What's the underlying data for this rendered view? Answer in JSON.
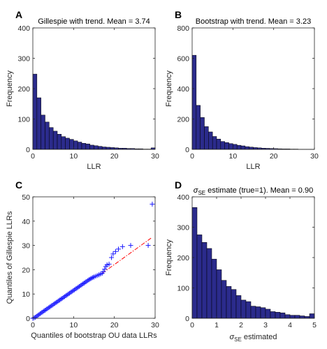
{
  "chart_data": [
    {
      "panel_label": "A",
      "type": "bar",
      "title": "Gillespie with trend. Mean = 3.74",
      "xlabel": "LLR",
      "ylabel": "Frequency",
      "xlim": [
        0,
        30
      ],
      "ylim": [
        0,
        400
      ],
      "xticks": [
        "0",
        "10",
        "20",
        "30"
      ],
      "yticks": [
        "0",
        "100",
        "200",
        "300",
        "400"
      ],
      "bin_width": 1,
      "values": [
        248,
        170,
        113,
        90,
        72,
        60,
        50,
        42,
        37,
        33,
        28,
        24,
        20,
        18,
        14,
        12,
        10,
        8,
        7,
        6,
        5,
        4,
        4,
        3,
        3,
        2,
        2,
        1,
        1,
        5
      ],
      "bar_color": "#2b2b8c"
    },
    {
      "panel_label": "B",
      "type": "bar",
      "title": "Bootstrap with trend. Mean = 3.23",
      "xlabel": "LLR",
      "ylabel": "Frequency",
      "xlim": [
        0,
        30
      ],
      "ylim": [
        0,
        800
      ],
      "xticks": [
        "0",
        "10",
        "20",
        "30"
      ],
      "yticks": [
        "0",
        "200",
        "400",
        "600",
        "800"
      ],
      "bin_width": 1,
      "values": [
        620,
        290,
        210,
        150,
        115,
        85,
        68,
        52,
        45,
        38,
        33,
        27,
        23,
        18,
        15,
        12,
        10,
        8,
        7,
        6,
        5,
        4,
        3,
        3,
        2,
        2,
        1,
        1,
        1,
        1
      ],
      "bar_color": "#2b2b8c"
    },
    {
      "panel_label": "C",
      "type": "scatter",
      "title": "",
      "xlabel": "Quantiles of bootstrap OU data LLRs",
      "ylabel": "Quantiles of Gillespie LLRs",
      "xlim": [
        0,
        30
      ],
      "ylim": [
        0,
        50
      ],
      "xticks": [
        "0",
        "10",
        "20",
        "30"
      ],
      "yticks": [
        "0",
        "10",
        "20",
        "30",
        "40",
        "50"
      ],
      "marker": "+",
      "marker_color": "#1a1aff",
      "reference_line": {
        "style": "dash-dot",
        "color": "#ff0000",
        "x": [
          17,
          29
        ],
        "y": [
          18.5,
          33
        ]
      },
      "points": [
        [
          0,
          0
        ],
        [
          0.3,
          0.2
        ],
        [
          0.6,
          0.4
        ],
        [
          0.9,
          0.8
        ],
        [
          1.2,
          1.2
        ],
        [
          1.5,
          1.5
        ],
        [
          1.8,
          1.9
        ],
        [
          2.1,
          2.3
        ],
        [
          2.4,
          2.6
        ],
        [
          2.7,
          3.0
        ],
        [
          3.0,
          3.3
        ],
        [
          3.3,
          3.7
        ],
        [
          3.6,
          4.0
        ],
        [
          3.9,
          4.4
        ],
        [
          4.2,
          4.7
        ],
        [
          4.5,
          5.1
        ],
        [
          4.8,
          5.4
        ],
        [
          5.1,
          5.8
        ],
        [
          5.4,
          6.1
        ],
        [
          5.7,
          6.5
        ],
        [
          6.0,
          6.8
        ],
        [
          6.3,
          7.2
        ],
        [
          6.6,
          7.5
        ],
        [
          6.9,
          7.9
        ],
        [
          7.2,
          8.2
        ],
        [
          7.5,
          8.6
        ],
        [
          7.8,
          8.9
        ],
        [
          8.1,
          9.3
        ],
        [
          8.4,
          9.6
        ],
        [
          8.7,
          10.0
        ],
        [
          9.0,
          10.3
        ],
        [
          9.3,
          10.7
        ],
        [
          9.6,
          11.0
        ],
        [
          9.9,
          11.4
        ],
        [
          10.2,
          11.7
        ],
        [
          10.5,
          12.1
        ],
        [
          10.8,
          12.4
        ],
        [
          11.1,
          12.8
        ],
        [
          11.4,
          13.1
        ],
        [
          11.7,
          13.5
        ],
        [
          12.0,
          13.8
        ],
        [
          12.3,
          14.2
        ],
        [
          12.6,
          14.5
        ],
        [
          12.9,
          14.9
        ],
        [
          13.2,
          15.2
        ],
        [
          13.5,
          15.6
        ],
        [
          13.8,
          15.9
        ],
        [
          14.1,
          16.2
        ],
        [
          14.4,
          16.5
        ],
        [
          14.7,
          16.8
        ],
        [
          15.0,
          17.0
        ],
        [
          15.4,
          17.3
        ],
        [
          15.8,
          17.6
        ],
        [
          16.2,
          17.9
        ],
        [
          16.6,
          18.2
        ],
        [
          17.0,
          18.5
        ],
        [
          17.3,
          19.2
        ],
        [
          17.6,
          20.2
        ],
        [
          17.9,
          21.3
        ],
        [
          18.2,
          22.0
        ],
        [
          18.7,
          22.3
        ],
        [
          19.3,
          25.0
        ],
        [
          19.7,
          26.5
        ],
        [
          20.3,
          27.5
        ],
        [
          21.0,
          28.5
        ],
        [
          22.0,
          29.5
        ],
        [
          24.0,
          30.0
        ],
        [
          28.3,
          30.0
        ],
        [
          29.3,
          47.0
        ]
      ]
    },
    {
      "panel_label": "D",
      "type": "bar",
      "title": "estimate (true=1). Mean = 0.90",
      "title_symbol": "σ",
      "title_subscript": "SE",
      "xlabel": "estimated",
      "xlabel_symbol": "σ",
      "xlabel_subscript": "SE",
      "ylabel": "Frequency",
      "xlim": [
        0,
        5
      ],
      "ylim": [
        0,
        400
      ],
      "xticks": [
        "0",
        "1",
        "2",
        "3",
        "4",
        "5"
      ],
      "yticks": [
        "0",
        "100",
        "200",
        "300",
        "400"
      ],
      "bin_width": 0.2,
      "values": [
        365,
        275,
        250,
        230,
        195,
        160,
        125,
        105,
        95,
        75,
        60,
        55,
        40,
        38,
        35,
        30,
        22,
        20,
        18,
        12,
        10,
        10,
        8,
        6,
        15
      ],
      "bar_color": "#2b2b8c"
    }
  ]
}
